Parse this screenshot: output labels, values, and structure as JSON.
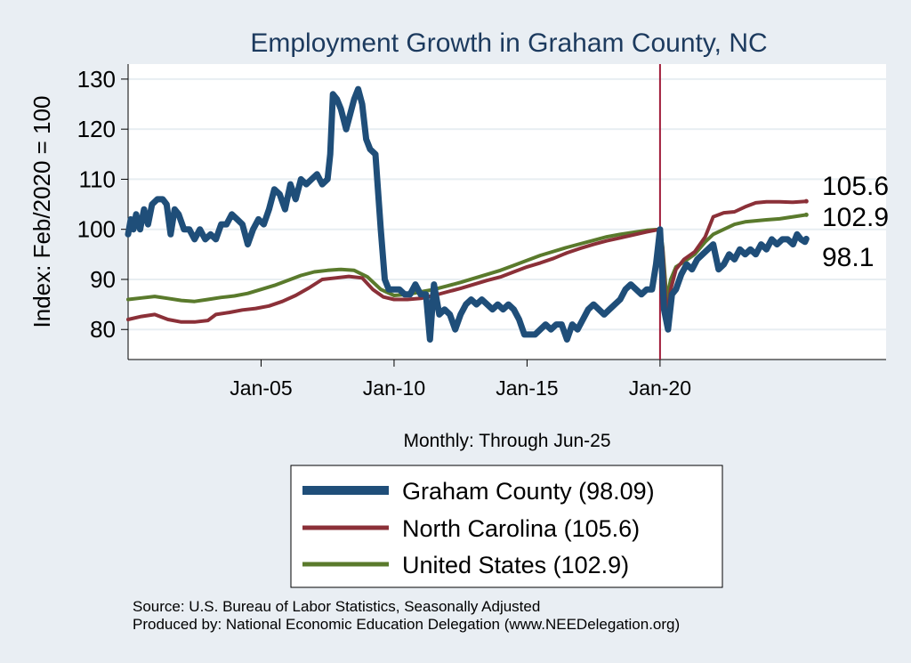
{
  "chart_data": {
    "type": "line",
    "title": "Employment Growth in Graham  County, NC",
    "xlabel": "Monthly: Through Jun-25",
    "ylabel": "Index: Feb/2020 = 100",
    "ylim": [
      74,
      133
    ],
    "xlim": [
      2000.0,
      2028.5
    ],
    "yticks": [
      80,
      90,
      100,
      110,
      120,
      130
    ],
    "xticks": [
      {
        "label": "Jan-05",
        "value": 2005.0
      },
      {
        "label": "Jan-10",
        "value": 2010.0
      },
      {
        "label": "Jan-15",
        "value": 2015.0
      },
      {
        "label": "Jan-20",
        "value": 2020.0
      }
    ],
    "reference_line": {
      "x": 2020.0,
      "color": "#a01c3a"
    },
    "grid": true,
    "legend_position": "bottom",
    "series": [
      {
        "name": "Graham  County",
        "legend_label": "Graham  County (98.09)",
        "end_label": "98.1",
        "color": "#1f4e79",
        "points": [
          [
            2000.0,
            99
          ],
          [
            2000.1,
            102
          ],
          [
            2000.2,
            100
          ],
          [
            2000.3,
            103
          ],
          [
            2000.45,
            100
          ],
          [
            2000.6,
            104
          ],
          [
            2000.75,
            101
          ],
          [
            2000.9,
            105
          ],
          [
            2001.1,
            106
          ],
          [
            2001.3,
            106
          ],
          [
            2001.45,
            105
          ],
          [
            2001.6,
            99
          ],
          [
            2001.75,
            104
          ],
          [
            2001.9,
            103
          ],
          [
            2002.1,
            100
          ],
          [
            2002.3,
            100
          ],
          [
            2002.5,
            98
          ],
          [
            2002.7,
            100
          ],
          [
            2002.9,
            98
          ],
          [
            2003.1,
            99
          ],
          [
            2003.3,
            98
          ],
          [
            2003.5,
            101
          ],
          [
            2003.7,
            101
          ],
          [
            2003.9,
            103
          ],
          [
            2004.1,
            102
          ],
          [
            2004.3,
            101
          ],
          [
            2004.5,
            97
          ],
          [
            2004.7,
            100
          ],
          [
            2004.9,
            102
          ],
          [
            2005.1,
            101
          ],
          [
            2005.3,
            104
          ],
          [
            2005.5,
            108
          ],
          [
            2005.7,
            107
          ],
          [
            2005.9,
            104
          ],
          [
            2006.1,
            109
          ],
          [
            2006.3,
            106
          ],
          [
            2006.5,
            110
          ],
          [
            2006.7,
            109
          ],
          [
            2006.9,
            110
          ],
          [
            2007.1,
            111
          ],
          [
            2007.3,
            109
          ],
          [
            2007.5,
            110
          ],
          [
            2007.6,
            115
          ],
          [
            2007.7,
            127
          ],
          [
            2007.85,
            126
          ],
          [
            2008.0,
            124
          ],
          [
            2008.2,
            120
          ],
          [
            2008.35,
            123
          ],
          [
            2008.5,
            126
          ],
          [
            2008.65,
            128
          ],
          [
            2008.8,
            125
          ],
          [
            2008.95,
            118
          ],
          [
            2009.1,
            116
          ],
          [
            2009.3,
            115
          ],
          [
            2009.5,
            100
          ],
          [
            2009.65,
            90
          ],
          [
            2009.8,
            88
          ],
          [
            2010.0,
            88
          ],
          [
            2010.2,
            88
          ],
          [
            2010.4,
            87
          ],
          [
            2010.6,
            87
          ],
          [
            2010.8,
            89
          ],
          [
            2011.0,
            87
          ],
          [
            2011.2,
            87
          ],
          [
            2011.35,
            78
          ],
          [
            2011.5,
            89
          ],
          [
            2011.7,
            83
          ],
          [
            2011.9,
            84
          ],
          [
            2012.1,
            83
          ],
          [
            2012.3,
            80
          ],
          [
            2012.5,
            83
          ],
          [
            2012.7,
            85
          ],
          [
            2012.9,
            86
          ],
          [
            2013.1,
            85
          ],
          [
            2013.3,
            86
          ],
          [
            2013.5,
            85
          ],
          [
            2013.7,
            84
          ],
          [
            2013.9,
            85
          ],
          [
            2014.1,
            84
          ],
          [
            2014.3,
            85
          ],
          [
            2014.5,
            84
          ],
          [
            2014.7,
            82
          ],
          [
            2014.9,
            79
          ],
          [
            2015.1,
            79
          ],
          [
            2015.3,
            79
          ],
          [
            2015.5,
            80
          ],
          [
            2015.7,
            81
          ],
          [
            2015.9,
            80
          ],
          [
            2016.1,
            81
          ],
          [
            2016.3,
            81
          ],
          [
            2016.5,
            78
          ],
          [
            2016.7,
            81
          ],
          [
            2016.9,
            80
          ],
          [
            2017.1,
            82
          ],
          [
            2017.3,
            84
          ],
          [
            2017.5,
            85
          ],
          [
            2017.7,
            84
          ],
          [
            2017.9,
            83
          ],
          [
            2018.1,
            84
          ],
          [
            2018.3,
            85
          ],
          [
            2018.5,
            86
          ],
          [
            2018.7,
            88
          ],
          [
            2018.9,
            89
          ],
          [
            2019.1,
            88
          ],
          [
            2019.3,
            87
          ],
          [
            2019.5,
            88
          ],
          [
            2019.7,
            88
          ],
          [
            2019.85,
            93
          ],
          [
            2020.0,
            100
          ],
          [
            2020.15,
            84
          ],
          [
            2020.3,
            80
          ],
          [
            2020.45,
            87
          ],
          [
            2020.6,
            88
          ],
          [
            2020.8,
            91
          ],
          [
            2021.0,
            93
          ],
          [
            2021.2,
            92
          ],
          [
            2021.4,
            94
          ],
          [
            2021.6,
            95
          ],
          [
            2021.8,
            96
          ],
          [
            2022.0,
            97
          ],
          [
            2022.2,
            92
          ],
          [
            2022.4,
            93
          ],
          [
            2022.6,
            95
          ],
          [
            2022.8,
            94
          ],
          [
            2023.0,
            96
          ],
          [
            2023.2,
            95
          ],
          [
            2023.4,
            96
          ],
          [
            2023.6,
            95
          ],
          [
            2023.8,
            97
          ],
          [
            2024.0,
            96
          ],
          [
            2024.2,
            98
          ],
          [
            2024.4,
            97
          ],
          [
            2024.6,
            98
          ],
          [
            2024.8,
            98
          ],
          [
            2025.0,
            97
          ],
          [
            2025.15,
            99
          ],
          [
            2025.3,
            98
          ],
          [
            2025.45,
            97.5
          ],
          [
            2025.5,
            98.1
          ]
        ]
      },
      {
        "name": "North Carolina",
        "legend_label": "North Carolina (105.6)",
        "end_label": "105.6",
        "color": "#8b3038",
        "points": [
          [
            2000.0,
            82
          ],
          [
            2000.5,
            82.6
          ],
          [
            2001.0,
            83
          ],
          [
            2001.5,
            82
          ],
          [
            2002.0,
            81.5
          ],
          [
            2002.5,
            81.5
          ],
          [
            2003.0,
            81.8
          ],
          [
            2003.3,
            83
          ],
          [
            2003.8,
            83.4
          ],
          [
            2004.3,
            83.9
          ],
          [
            2004.8,
            84.2
          ],
          [
            2005.3,
            84.7
          ],
          [
            2005.8,
            85.6
          ],
          [
            2006.3,
            86.8
          ],
          [
            2006.8,
            88.3
          ],
          [
            2007.3,
            90
          ],
          [
            2007.8,
            90.3
          ],
          [
            2008.3,
            90.6
          ],
          [
            2008.8,
            90.3
          ],
          [
            2009.2,
            88
          ],
          [
            2009.6,
            86.5
          ],
          [
            2010.0,
            86
          ],
          [
            2010.5,
            86
          ],
          [
            2011.0,
            86.2
          ],
          [
            2011.5,
            86.8
          ],
          [
            2012.0,
            87.5
          ],
          [
            2012.5,
            88.2
          ],
          [
            2013.0,
            89
          ],
          [
            2013.5,
            89.8
          ],
          [
            2014.0,
            90.5
          ],
          [
            2014.5,
            91.5
          ],
          [
            2015.0,
            92.5
          ],
          [
            2015.5,
            93.3
          ],
          [
            2016.0,
            94.2
          ],
          [
            2016.5,
            95.3
          ],
          [
            2017.0,
            96.2
          ],
          [
            2017.5,
            97
          ],
          [
            2018.0,
            97.7
          ],
          [
            2018.5,
            98.3
          ],
          [
            2019.0,
            98.9
          ],
          [
            2019.5,
            99.5
          ],
          [
            2020.0,
            100
          ],
          [
            2020.1,
            96
          ],
          [
            2020.25,
            82
          ],
          [
            2020.4,
            88
          ],
          [
            2020.6,
            92
          ],
          [
            2020.9,
            94
          ],
          [
            2021.3,
            95.5
          ],
          [
            2021.7,
            98.5
          ],
          [
            2022.0,
            102.5
          ],
          [
            2022.4,
            103.3
          ],
          [
            2022.8,
            103.5
          ],
          [
            2023.2,
            104.5
          ],
          [
            2023.6,
            105.3
          ],
          [
            2024.0,
            105.5
          ],
          [
            2024.5,
            105.5
          ],
          [
            2025.0,
            105.4
          ],
          [
            2025.5,
            105.6
          ]
        ]
      },
      {
        "name": "United States",
        "legend_label": "United States (102.9)",
        "end_label": "102.9",
        "color": "#5a7a2c",
        "points": [
          [
            2000.0,
            86
          ],
          [
            2000.5,
            86.3
          ],
          [
            2001.0,
            86.6
          ],
          [
            2001.5,
            86.2
          ],
          [
            2002.0,
            85.8
          ],
          [
            2002.5,
            85.6
          ],
          [
            2003.0,
            86
          ],
          [
            2003.5,
            86.4
          ],
          [
            2004.0,
            86.7
          ],
          [
            2004.5,
            87.2
          ],
          [
            2005.0,
            88
          ],
          [
            2005.5,
            88.8
          ],
          [
            2006.0,
            89.8
          ],
          [
            2006.5,
            90.8
          ],
          [
            2007.0,
            91.5
          ],
          [
            2007.5,
            91.8
          ],
          [
            2008.0,
            92
          ],
          [
            2008.5,
            91.8
          ],
          [
            2009.0,
            90.5
          ],
          [
            2009.5,
            88
          ],
          [
            2010.0,
            86.8
          ],
          [
            2010.5,
            87
          ],
          [
            2011.0,
            87.5
          ],
          [
            2011.5,
            88
          ],
          [
            2012.0,
            88.7
          ],
          [
            2012.5,
            89.4
          ],
          [
            2013.0,
            90.2
          ],
          [
            2013.5,
            91
          ],
          [
            2014.0,
            91.8
          ],
          [
            2014.5,
            92.8
          ],
          [
            2015.0,
            93.8
          ],
          [
            2015.5,
            94.8
          ],
          [
            2016.0,
            95.6
          ],
          [
            2016.5,
            96.4
          ],
          [
            2017.0,
            97.1
          ],
          [
            2017.5,
            97.8
          ],
          [
            2018.0,
            98.5
          ],
          [
            2018.5,
            99
          ],
          [
            2019.0,
            99.4
          ],
          [
            2019.5,
            99.8
          ],
          [
            2020.0,
            100
          ],
          [
            2020.1,
            96.5
          ],
          [
            2020.25,
            86
          ],
          [
            2020.4,
            90
          ],
          [
            2020.6,
            92.5
          ],
          [
            2020.9,
            93.5
          ],
          [
            2021.3,
            95
          ],
          [
            2021.7,
            97.5
          ],
          [
            2022.0,
            99
          ],
          [
            2022.4,
            100
          ],
          [
            2022.8,
            101
          ],
          [
            2023.2,
            101.5
          ],
          [
            2023.6,
            101.7
          ],
          [
            2024.0,
            101.9
          ],
          [
            2024.5,
            102.1
          ],
          [
            2025.0,
            102.5
          ],
          [
            2025.5,
            102.9
          ]
        ]
      }
    ]
  },
  "footer": {
    "source": "Source: U.S. Bureau of Labor Statistics, Seasonally Adjusted",
    "produced_by": "Produced by: National Economic Education Delegation (www.NEEDelegation.org)"
  }
}
